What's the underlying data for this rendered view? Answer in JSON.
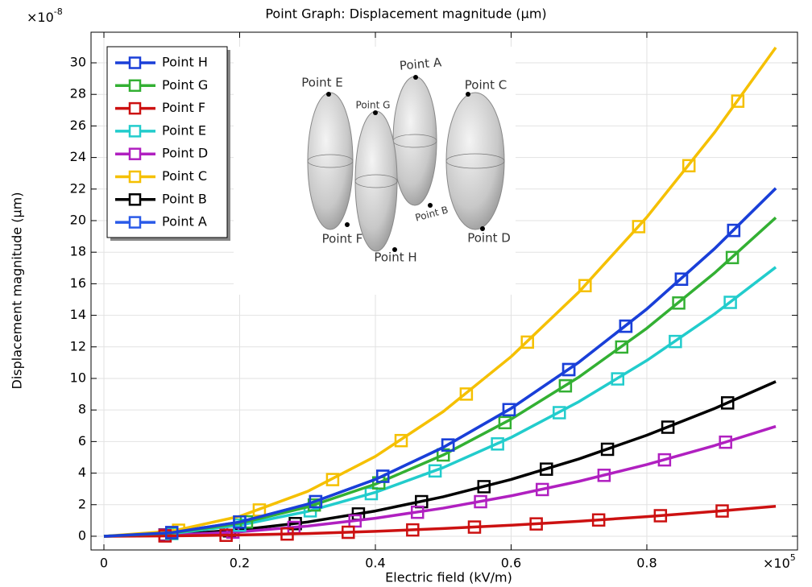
{
  "chart_data": {
    "type": "line",
    "title": "Point Graph: Displacement magnitude (μm)",
    "x_label": "Electric field (kV/m)",
    "y_label": "Displacement magnitude (μm)",
    "y_multiplier": {
      "base": "×10",
      "exponent": "-8"
    },
    "x_multiplier": {
      "base": "×10",
      "exponent": "5"
    },
    "xlim": [
      -0.019,
      1.022
    ],
    "ylim": [
      -0.87,
      31.94
    ],
    "xticks": [
      0,
      0.2,
      0.4,
      0.6,
      0.8
    ],
    "yticks": [
      0,
      2,
      4,
      6,
      8,
      10,
      12,
      14,
      16,
      18,
      20,
      22,
      24,
      26,
      28,
      30
    ],
    "grid": true,
    "legend": "upper-left",
    "x": [
      0,
      0.1,
      0.2,
      0.3,
      0.4,
      0.5,
      0.6,
      0.7,
      0.8,
      0.9,
      0.99
    ],
    "series": [
      {
        "name": "Point H",
        "color": "#1a3fd8",
        "values": [
          0,
          0.23,
          0.9,
          2.03,
          3.6,
          5.63,
          8.1,
          11.03,
          14.4,
          18.23,
          22.05
        ],
        "marker_x": [
          0.1,
          0.2,
          0.312,
          0.411,
          0.507,
          0.597,
          0.685,
          0.769,
          0.851,
          0.928
        ],
        "marker_values": [
          0.23,
          0.9,
          2.19,
          3.8,
          5.78,
          8.02,
          10.56,
          13.31,
          16.29,
          19.38
        ]
      },
      {
        "name": "Point G",
        "color": "#33b033",
        "values": [
          0,
          0.21,
          0.82,
          1.85,
          3.3,
          5.15,
          7.42,
          10.09,
          13.18,
          16.69,
          20.19
        ],
        "marker_x": [
          0.1,
          0.21,
          0.31,
          0.405,
          0.5,
          0.591,
          0.68,
          0.763,
          0.847,
          0.926
        ],
        "marker_values": [
          0.21,
          0.91,
          1.98,
          3.38,
          5.15,
          7.2,
          9.53,
          11.99,
          14.78,
          17.66
        ]
      },
      {
        "name": "Point F",
        "color": "#cc1111",
        "values": [
          0,
          0.02,
          0.08,
          0.17,
          0.31,
          0.49,
          0.7,
          0.95,
          1.24,
          1.57,
          1.9
        ],
        "marker_x": [
          0.09,
          0.18,
          0.27,
          0.36,
          0.455,
          0.546,
          0.637,
          0.729,
          0.82,
          0.911
        ],
        "marker_values": [
          0.02,
          0.06,
          0.14,
          0.25,
          0.4,
          0.58,
          0.78,
          1.03,
          1.3,
          1.6
        ]
      },
      {
        "name": "Point E",
        "color": "#22cccc",
        "values": [
          0,
          0.17,
          0.7,
          1.57,
          2.78,
          4.35,
          6.26,
          8.53,
          11.14,
          14.09,
          17.05
        ],
        "marker_x": [
          0.1,
          0.2,
          0.304,
          0.394,
          0.488,
          0.58,
          0.671,
          0.757,
          0.842,
          0.923
        ],
        "marker_values": [
          0.17,
          0.7,
          1.61,
          2.7,
          4.14,
          5.85,
          7.83,
          9.97,
          12.34,
          14.82
        ]
      },
      {
        "name": "Point D",
        "color": "#b020c0",
        "values": [
          0,
          0.07,
          0.28,
          0.64,
          1.14,
          1.78,
          2.56,
          3.48,
          4.54,
          5.75,
          6.96
        ],
        "marker_x": [
          0.09,
          0.19,
          0.28,
          0.37,
          0.462,
          0.555,
          0.646,
          0.737,
          0.826,
          0.916
        ],
        "marker_values": [
          0.06,
          0.26,
          0.56,
          0.97,
          1.52,
          2.19,
          2.96,
          3.86,
          4.84,
          5.96
        ]
      },
      {
        "name": "Point C",
        "color": "#f5c000",
        "values": [
          0,
          0.32,
          1.26,
          2.84,
          5.06,
          7.9,
          11.38,
          15.48,
          20.22,
          25.6,
          30.97
        ],
        "marker_x": [
          0.11,
          0.229,
          0.337,
          0.438,
          0.534,
          0.624,
          0.709,
          0.788,
          0.862,
          0.934
        ],
        "marker_values": [
          0.38,
          1.66,
          3.59,
          6.06,
          9.01,
          12.3,
          15.88,
          19.62,
          23.48,
          27.57
        ]
      },
      {
        "name": "Point B",
        "color": "#000000",
        "values": [
          0,
          0.1,
          0.4,
          0.9,
          1.6,
          2.5,
          3.6,
          4.9,
          6.4,
          8.1,
          9.8
        ],
        "marker_x": [
          0.09,
          0.185,
          0.282,
          0.375,
          0.468,
          0.56,
          0.652,
          0.742,
          0.831,
          0.919
        ],
        "marker_values": [
          0.08,
          0.34,
          0.8,
          1.41,
          2.19,
          3.14,
          4.25,
          5.51,
          6.91,
          8.45
        ]
      },
      {
        "name": "Point A",
        "color": "#2a5ae8",
        "values": [
          0,
          0.23,
          0.9,
          2.03,
          3.6,
          5.63,
          8.1,
          11.03,
          14.4,
          18.23,
          22.05
        ],
        "marker_x": [
          0.1,
          0.2,
          0.312,
          0.411,
          0.507,
          0.597,
          0.685,
          0.769,
          0.851,
          0.928
        ],
        "marker_values": [
          0.23,
          0.9,
          2.19,
          3.8,
          5.78,
          8.02,
          10.56,
          13.31,
          16.29,
          19.38
        ]
      }
    ]
  },
  "inset": {
    "labels": [
      "Point A",
      "Point B",
      "Point C",
      "Point D",
      "Point E",
      "Point F",
      "Point G",
      "Point H"
    ]
  }
}
